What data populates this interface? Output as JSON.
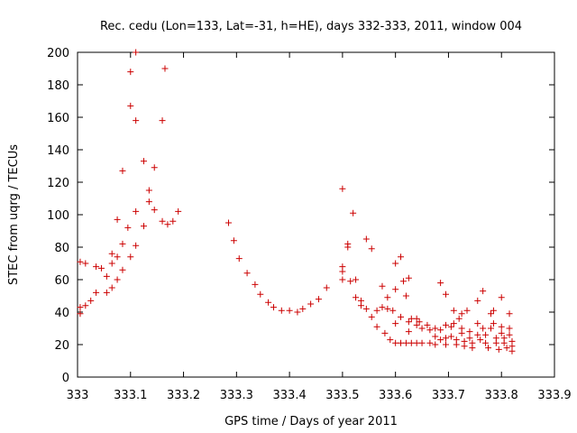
{
  "chart_data": {
    "type": "scatter",
    "title": "Rec. cedu (Lon=133, Lat=-31, h=HE), days 332-333, 2011, window 004",
    "xlabel": "GPS time / Days of year 2011",
    "ylabel": "STEC from uqrg / TECUs",
    "xlim": [
      333,
      333.9
    ],
    "ylim": [
      0,
      200
    ],
    "x_ticks": [
      "333",
      "333.1",
      "333.2",
      "333.3",
      "333.4",
      "333.5",
      "333.6",
      "333.7",
      "333.8",
      "333.9"
    ],
    "y_ticks": [
      "0",
      "20",
      "40",
      "60",
      "80",
      "100",
      "120",
      "140",
      "160",
      "180",
      "200"
    ],
    "grid": false,
    "marker": "+",
    "marker_color": "#cc0000",
    "series": [
      {
        "points": [
          [
            333.005,
            71
          ],
          [
            333.005,
            43
          ],
          [
            333.005,
            39
          ],
          [
            333.015,
            44
          ],
          [
            333.015,
            70
          ],
          [
            333.025,
            47
          ],
          [
            333.035,
            52
          ],
          [
            333.035,
            68
          ],
          [
            333.045,
            67
          ],
          [
            333.055,
            62
          ],
          [
            333.055,
            52
          ],
          [
            333.065,
            76
          ],
          [
            333.065,
            55
          ],
          [
            333.065,
            70
          ],
          [
            333.075,
            97
          ],
          [
            333.075,
            60
          ],
          [
            333.075,
            74
          ],
          [
            333.085,
            82
          ],
          [
            333.085,
            66
          ],
          [
            333.085,
            127
          ],
          [
            333.1,
            188
          ],
          [
            333.1,
            167
          ],
          [
            333.095,
            92
          ],
          [
            333.1,
            74
          ],
          [
            333.11,
            200
          ],
          [
            333.11,
            158
          ],
          [
            333.11,
            102
          ],
          [
            333.11,
            81
          ],
          [
            333.125,
            133
          ],
          [
            333.125,
            93
          ],
          [
            333.135,
            115
          ],
          [
            333.135,
            108
          ],
          [
            333.145,
            103
          ],
          [
            333.145,
            129
          ],
          [
            333.16,
            158
          ],
          [
            333.16,
            96
          ],
          [
            333.165,
            190
          ],
          [
            333.17,
            94
          ],
          [
            333.18,
            96
          ],
          [
            333.19,
            102
          ],
          [
            333.285,
            95
          ],
          [
            333.295,
            84
          ],
          [
            333.305,
            73
          ],
          [
            333.32,
            64
          ],
          [
            333.335,
            57
          ],
          [
            333.345,
            51
          ],
          [
            333.36,
            46
          ],
          [
            333.37,
            43
          ],
          [
            333.385,
            41
          ],
          [
            333.4,
            41
          ],
          [
            333.415,
            40
          ],
          [
            333.425,
            42
          ],
          [
            333.44,
            45
          ],
          [
            333.455,
            48
          ],
          [
            333.47,
            55
          ],
          [
            333.5,
            116
          ],
          [
            333.5,
            68
          ],
          [
            333.5,
            65
          ],
          [
            333.5,
            60
          ],
          [
            333.51,
            82
          ],
          [
            333.51,
            80
          ],
          [
            333.515,
            59
          ],
          [
            333.52,
            101
          ],
          [
            333.525,
            60
          ],
          [
            333.525,
            49
          ],
          [
            333.535,
            47
          ],
          [
            333.535,
            44
          ],
          [
            333.545,
            85
          ],
          [
            333.545,
            42
          ],
          [
            333.555,
            37
          ],
          [
            333.555,
            79
          ],
          [
            333.565,
            41
          ],
          [
            333.565,
            31
          ],
          [
            333.575,
            56
          ],
          [
            333.575,
            43
          ],
          [
            333.58,
            27
          ],
          [
            333.585,
            49
          ],
          [
            333.585,
            42
          ],
          [
            333.59,
            23
          ],
          [
            333.595,
            41
          ],
          [
            333.6,
            70
          ],
          [
            333.6,
            54
          ],
          [
            333.6,
            33
          ],
          [
            333.6,
            21
          ],
          [
            333.61,
            74
          ],
          [
            333.61,
            37
          ],
          [
            333.61,
            21
          ],
          [
            333.615,
            59
          ],
          [
            333.62,
            50
          ],
          [
            333.62,
            21
          ],
          [
            333.625,
            61
          ],
          [
            333.625,
            34
          ],
          [
            333.625,
            28
          ],
          [
            333.63,
            36
          ],
          [
            333.63,
            21
          ],
          [
            333.64,
            36
          ],
          [
            333.64,
            32
          ],
          [
            333.64,
            21
          ],
          [
            333.645,
            34
          ],
          [
            333.65,
            30
          ],
          [
            333.65,
            21
          ],
          [
            333.66,
            32
          ],
          [
            333.665,
            29
          ],
          [
            333.665,
            21
          ],
          [
            333.675,
            30
          ],
          [
            333.675,
            25
          ],
          [
            333.675,
            20
          ],
          [
            333.685,
            58
          ],
          [
            333.685,
            29
          ],
          [
            333.685,
            23
          ],
          [
            333.695,
            51
          ],
          [
            333.695,
            32
          ],
          [
            333.695,
            24
          ],
          [
            333.695,
            20
          ],
          [
            333.705,
            31
          ],
          [
            333.705,
            25
          ],
          [
            333.71,
            41
          ],
          [
            333.71,
            33
          ],
          [
            333.715,
            23
          ],
          [
            333.715,
            20
          ],
          [
            333.72,
            36
          ],
          [
            333.725,
            39
          ],
          [
            333.725,
            30
          ],
          [
            333.725,
            27
          ],
          [
            333.73,
            22
          ],
          [
            333.73,
            19
          ],
          [
            333.735,
            41
          ],
          [
            333.74,
            28
          ],
          [
            333.74,
            24
          ],
          [
            333.745,
            21
          ],
          [
            333.745,
            18
          ],
          [
            333.755,
            47
          ],
          [
            333.755,
            33
          ],
          [
            333.755,
            26
          ],
          [
            333.76,
            23
          ],
          [
            333.765,
            53
          ],
          [
            333.765,
            30
          ],
          [
            333.77,
            26
          ],
          [
            333.77,
            21
          ],
          [
            333.775,
            18
          ],
          [
            333.78,
            39
          ],
          [
            333.78,
            30
          ],
          [
            333.785,
            41
          ],
          [
            333.785,
            33
          ],
          [
            333.79,
            24
          ],
          [
            333.79,
            21
          ],
          [
            333.795,
            17
          ],
          [
            333.8,
            49
          ],
          [
            333.8,
            31
          ],
          [
            333.8,
            27
          ],
          [
            333.805,
            24
          ],
          [
            333.805,
            21
          ],
          [
            333.81,
            18
          ],
          [
            333.815,
            39
          ],
          [
            333.815,
            30
          ],
          [
            333.815,
            26
          ],
          [
            333.82,
            22
          ],
          [
            333.82,
            19
          ],
          [
            333.82,
            16
          ]
        ]
      }
    ]
  }
}
